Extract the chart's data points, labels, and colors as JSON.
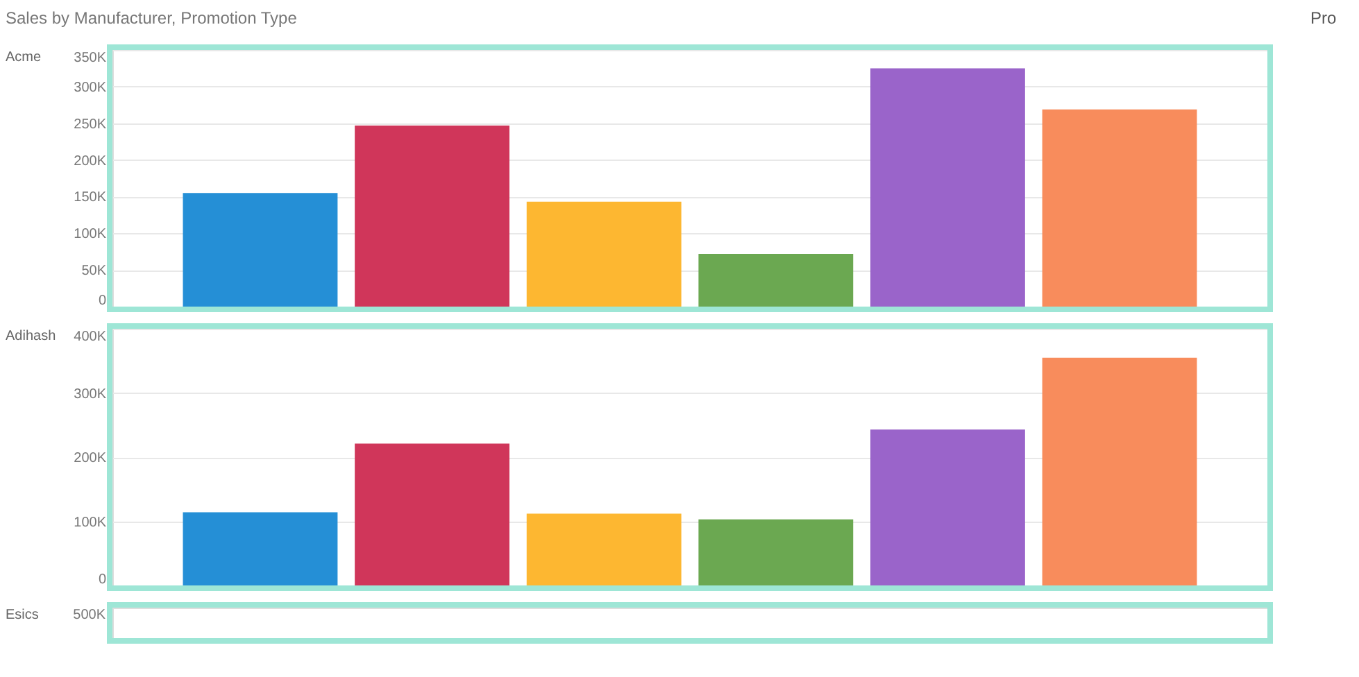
{
  "chart_data": [
    {
      "type": "bar",
      "title": "Sales by Manufacturer, Promotion Type",
      "subtitle": "Acme",
      "categories": [
        null,
        null,
        null,
        null,
        null,
        null
      ],
      "values": [
        155000,
        247000,
        143000,
        72000,
        325000,
        269000
      ],
      "colors": [
        "#258fd6",
        "#d0365a",
        "#fdb731",
        "#6ba851",
        "#9a64ca",
        "#f88c5c"
      ],
      "ylim": [
        0,
        350000
      ],
      "yticks": [
        0,
        {
          "value": 50000,
          "label": "50K"
        },
        {
          "value": 100000,
          "label": "100K"
        },
        {
          "value": 150000,
          "label": "150K"
        },
        {
          "value": 200000,
          "label": "200K"
        },
        {
          "value": 250000,
          "label": "250K"
        },
        {
          "value": 300000,
          "label": "300K"
        },
        {
          "value": 350000,
          "label": "350K"
        }
      ],
      "grid": "y",
      "tick_labels": "y",
      "annotations": [
        "Pro"
      ]
    },
    {
      "type": "bar",
      "subtitle": "Adihash",
      "categories": [
        null,
        null,
        null,
        null,
        null,
        null
      ],
      "values": [
        114000,
        221000,
        112000,
        103000,
        243000,
        355000
      ],
      "colors": [
        "#258fd6",
        "#d0365a",
        "#fdb731",
        "#6ba851",
        "#9a64ca",
        "#f88c5c"
      ],
      "ylim": [
        0,
        400000
      ],
      "yticks": [
        0,
        {
          "value": 100000,
          "label": "100K"
        },
        {
          "value": 200000,
          "label": "200K"
        },
        {
          "value": 300000,
          "label": "300K"
        },
        {
          "value": 400000,
          "label": "400K"
        }
      ],
      "grid": "y",
      "tick_labels": "y"
    },
    {
      "type": "other",
      "subtitle": "Esics",
      "annotations": [
        "500K"
      ]
    }
  ]
}
